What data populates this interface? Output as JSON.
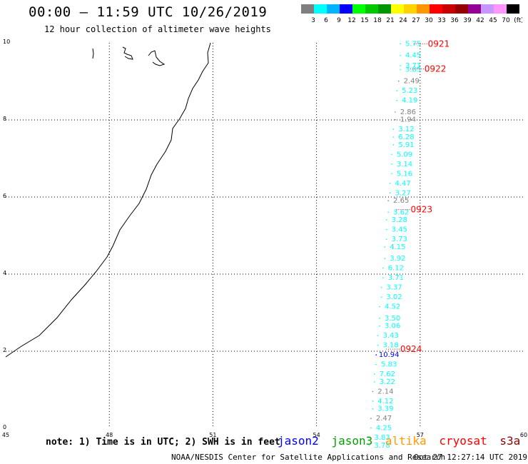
{
  "header": {
    "title": "00:00 – 11:59 UTC 10/26/2019",
    "subtitle": "12 hour collection of altimeter wave heights"
  },
  "colorbar": {
    "labels": [
      "3",
      "6",
      "9",
      "12",
      "15",
      "18",
      "21",
      "24",
      "27",
      "30",
      "33",
      "36",
      "39",
      "42",
      "45",
      "70",
      "(ft)"
    ],
    "colors": [
      "#7f7f7f",
      "#00ffff",
      "#00b4ff",
      "#0000ff",
      "#00ff00",
      "#00c800",
      "#009600",
      "#ffff00",
      "#ffd200",
      "#ff9600",
      "#ff0000",
      "#c80000",
      "#960000",
      "#960096",
      "#c896ff",
      "#ff96ff",
      "#000000"
    ]
  },
  "note": "note: 1) Time is in UTC; 2) SWH is in feet",
  "legend": [
    {
      "label": "jason2",
      "color": "#0000ff"
    },
    {
      "label": "jason3",
      "color": "#00a000"
    },
    {
      "label": "altika",
      "color": "#ff9900"
    },
    {
      "label": "cryosat",
      "color": "#ff0000"
    },
    {
      "label": "s3a",
      "color": "#8b0000"
    }
  ],
  "footer": {
    "credit": "NOAA/NESDIS Center for Satellite Applications and Research",
    "timestamp": "Oct 27 12:27:14 UTC 2019"
  },
  "chart_data": {
    "type": "scatter",
    "xlim": [
      45,
      60
    ],
    "ylim": [
      0,
      10
    ],
    "x_ticks": [
      "45",
      "48",
      "51",
      "54",
      "57",
      "60"
    ],
    "y_ticks": [
      "0",
      "2",
      "4",
      "6",
      "8",
      "10"
    ],
    "grid": true,
    "units": "ft",
    "time_labels": [
      {
        "label": "0921",
        "x": 57.1,
        "y": 9.9
      },
      {
        "label": "0922",
        "x": 57.0,
        "y": 9.25
      },
      {
        "label": "0923",
        "x": 56.6,
        "y": 5.6
      },
      {
        "label": "0924",
        "x": 56.3,
        "y": 1.98
      }
    ],
    "points": [
      {
        "x": 56.8,
        "y": 9.92,
        "v": "5.75",
        "c": "#00ffff"
      },
      {
        "x": 56.8,
        "y": 9.62,
        "v": "4.45",
        "c": "#00ffff"
      },
      {
        "x": 56.8,
        "y": 9.35,
        "v": "3.71",
        "c": "#00ffff"
      },
      {
        "x": 56.8,
        "y": 9.25,
        "v": "3.85",
        "c": "#00ffff"
      },
      {
        "x": 56.75,
        "y": 8.95,
        "v": "2.49",
        "c": "#7f7f7f"
      },
      {
        "x": 56.7,
        "y": 8.7,
        "v": "5.23",
        "c": "#00ffff"
      },
      {
        "x": 56.7,
        "y": 8.45,
        "v": "4.19",
        "c": "#00ffff"
      },
      {
        "x": 56.65,
        "y": 8.15,
        "v": "2.86",
        "c": "#7f7f7f"
      },
      {
        "x": 56.65,
        "y": 7.95,
        "v": "1.94",
        "c": "#7f7f7f"
      },
      {
        "x": 56.6,
        "y": 7.7,
        "v": "3.12",
        "c": "#00ffff"
      },
      {
        "x": 56.6,
        "y": 7.5,
        "v": "6.28",
        "c": "#00ffff"
      },
      {
        "x": 56.6,
        "y": 7.3,
        "v": "5.91",
        "c": "#00ffff"
      },
      {
        "x": 56.55,
        "y": 7.05,
        "v": "5.09",
        "c": "#00ffff"
      },
      {
        "x": 56.55,
        "y": 6.8,
        "v": "3.14",
        "c": "#00ffff"
      },
      {
        "x": 56.55,
        "y": 6.55,
        "v": "5.16",
        "c": "#00ffff"
      },
      {
        "x": 56.5,
        "y": 6.3,
        "v": "4.47",
        "c": "#00ffff"
      },
      {
        "x": 56.5,
        "y": 6.05,
        "v": "3.27",
        "c": "#00ffff"
      },
      {
        "x": 56.45,
        "y": 5.85,
        "v": "2.65",
        "c": "#7f7f7f"
      },
      {
        "x": 56.45,
        "y": 5.55,
        "v": "3.62",
        "c": "#00ffff"
      },
      {
        "x": 56.4,
        "y": 5.35,
        "v": "3.28",
        "c": "#00ffff"
      },
      {
        "x": 56.4,
        "y": 5.1,
        "v": "3.45",
        "c": "#00ffff"
      },
      {
        "x": 56.4,
        "y": 4.85,
        "v": "3.73",
        "c": "#00ffff"
      },
      {
        "x": 56.35,
        "y": 4.65,
        "v": "4.15",
        "c": "#00ffff"
      },
      {
        "x": 56.35,
        "y": 4.35,
        "v": "3.92",
        "c": "#00ffff"
      },
      {
        "x": 56.3,
        "y": 4.1,
        "v": "6.12",
        "c": "#00ffff"
      },
      {
        "x": 56.3,
        "y": 3.85,
        "v": "3.71",
        "c": "#00ffff"
      },
      {
        "x": 56.25,
        "y": 3.6,
        "v": "3.37",
        "c": "#00ffff"
      },
      {
        "x": 56.25,
        "y": 3.35,
        "v": "3.02",
        "c": "#00ffff"
      },
      {
        "x": 56.2,
        "y": 3.1,
        "v": "4.52",
        "c": "#00ffff"
      },
      {
        "x": 56.2,
        "y": 2.8,
        "v": "3.50",
        "c": "#00ffff"
      },
      {
        "x": 56.2,
        "y": 2.6,
        "v": "3.06",
        "c": "#00ffff"
      },
      {
        "x": 56.15,
        "y": 2.35,
        "v": "3.43",
        "c": "#00ffff"
      },
      {
        "x": 56.15,
        "y": 2.1,
        "v": "3.18",
        "c": "#00ffff"
      },
      {
        "x": 56.1,
        "y": 1.85,
        "v": "10.94",
        "c": "#0000ff"
      },
      {
        "x": 56.1,
        "y": 1.6,
        "v": "5.83",
        "c": "#00ffff"
      },
      {
        "x": 56.05,
        "y": 1.35,
        "v": "7.62",
        "c": "#00ffff"
      },
      {
        "x": 56.05,
        "y": 1.15,
        "v": "3.22",
        "c": "#00ffff"
      },
      {
        "x": 56.0,
        "y": 0.9,
        "v": "2.14",
        "c": "#7f7f7f"
      },
      {
        "x": 56.0,
        "y": 0.65,
        "v": "4.12",
        "c": "#00ffff"
      },
      {
        "x": 56.0,
        "y": 0.45,
        "v": "3.39",
        "c": "#00ffff"
      },
      {
        "x": 55.95,
        "y": 0.2,
        "v": "2.47",
        "c": "#7f7f7f"
      },
      {
        "x": 55.95,
        "y": -0.05,
        "v": "4.25",
        "c": "#00ffff"
      },
      {
        "x": 55.9,
        "y": -0.3,
        "v": "3.83",
        "c": "#00ffff"
      },
      {
        "x": 55.9,
        "y": -0.5,
        "v": "3.78",
        "c": "#00ffff"
      }
    ]
  }
}
